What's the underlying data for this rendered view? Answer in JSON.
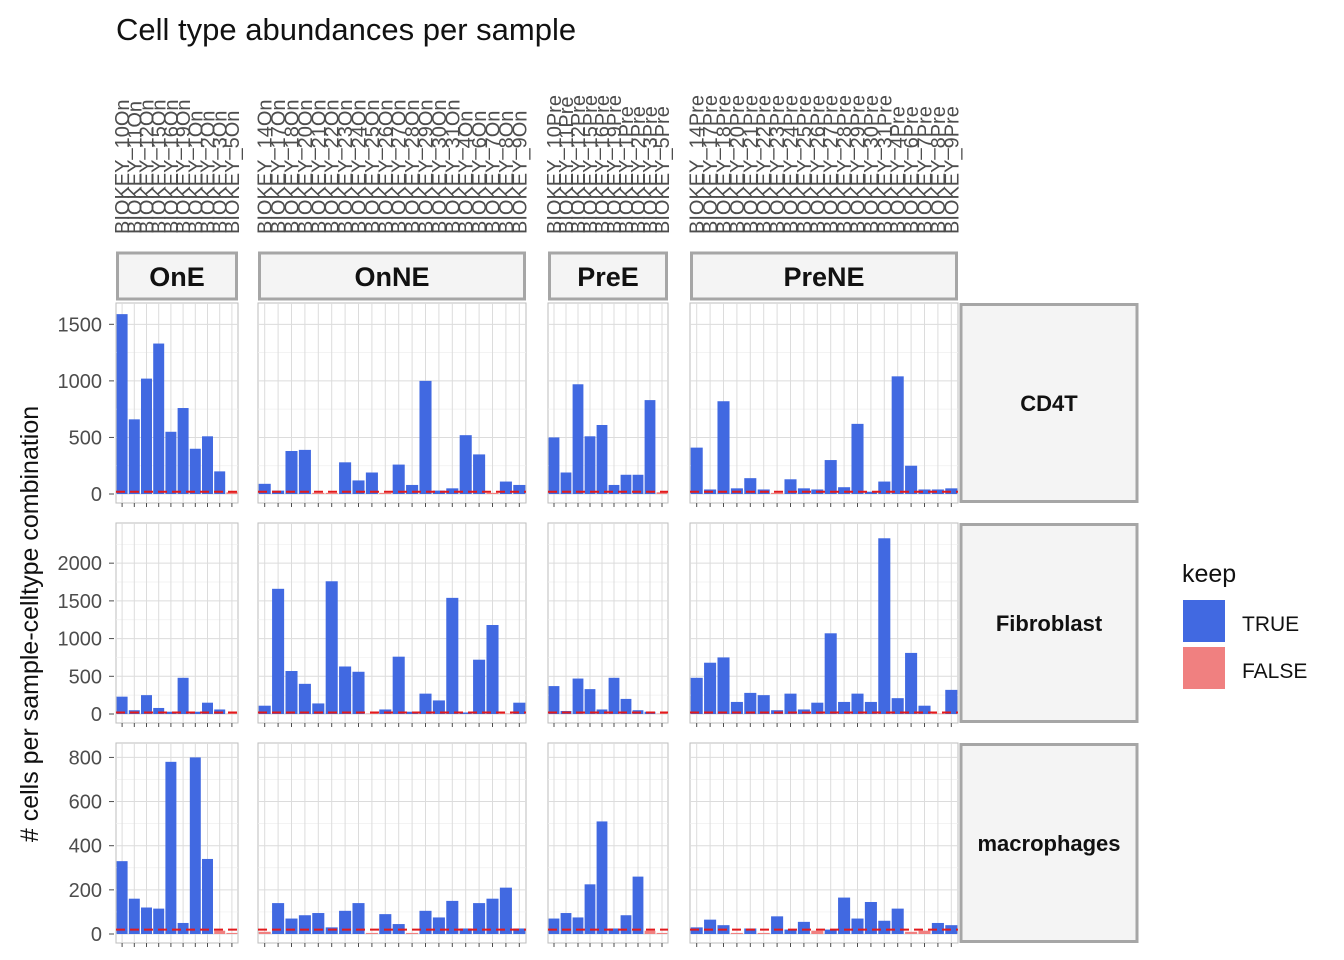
{
  "chart_data": {
    "type": "bar",
    "title": "Cell type abundances per sample",
    "ylabel": "# cells per sample-celltype combination",
    "xlabel": "",
    "legend": {
      "title": "keep",
      "placement": "right",
      "entries": [
        {
          "label": "TRUE",
          "color": "#4169E1"
        },
        {
          "label": "FALSE",
          "color": "#F08080"
        }
      ]
    },
    "threshold_color": "#E31A1C",
    "threshold_value": 20,
    "columns": [
      {
        "name": "OnE",
        "samples": [
          "BIOKEY_10On",
          "BIOKEY_11On",
          "BIOKEY_12On",
          "BIOKEY_15On",
          "BIOKEY_16On",
          "BIOKEY_19On",
          "BIOKEY_1On",
          "BIOKEY_2On",
          "BIOKEY_3On",
          "BIOKEY_5On"
        ]
      },
      {
        "name": "OnNE",
        "samples": [
          "BIOKEY_14On",
          "BIOKEY_17On",
          "BIOKEY_18On",
          "BIOKEY_20On",
          "BIOKEY_21On",
          "BIOKEY_22On",
          "BIOKEY_23On",
          "BIOKEY_24On",
          "BIOKEY_25On",
          "BIOKEY_26On",
          "BIOKEY_27On",
          "BIOKEY_28On",
          "BIOKEY_29On",
          "BIOKEY_30On",
          "BIOKEY_31On",
          "BIOKEY_4On",
          "BIOKEY_6On",
          "BIOKEY_7On",
          "BIOKEY_8On",
          "BIOKEY_9On"
        ]
      },
      {
        "name": "PreE",
        "samples": [
          "BIOKEY_10Pre",
          "BIOKEY_11Pre",
          "BIOKEY_12Pre",
          "BIOKEY_15Pre",
          "BIOKEY_16Pre",
          "BIOKEY_19Pre",
          "BIOKEY_1Pre",
          "BIOKEY_2Pre",
          "BIOKEY_3Pre",
          "BIOKEY_5Pre"
        ]
      },
      {
        "name": "PreNE",
        "samples": [
          "BIOKEY_14Pre",
          "BIOKEY_17Pre",
          "BIOKEY_18Pre",
          "BIOKEY_20Pre",
          "BIOKEY_21Pre",
          "BIOKEY_22Pre",
          "BIOKEY_23Pre",
          "BIOKEY_24Pre",
          "BIOKEY_25Pre",
          "BIOKEY_26Pre",
          "BIOKEY_27Pre",
          "BIOKEY_28Pre",
          "BIOKEY_29Pre",
          "BIOKEY_30Pre",
          "BIOKEY_31Pre",
          "BIOKEY_4Pre",
          "BIOKEY_6Pre",
          "BIOKEY_7Pre",
          "BIOKEY_8Pre",
          "BIOKEY_9Pre"
        ]
      }
    ],
    "rows": [
      {
        "name": "CD4T",
        "ylim": [
          0,
          1600
        ],
        "yticks": [
          0,
          500,
          1000,
          1500
        ],
        "values": [
          [
            1590,
            660,
            1020,
            1330,
            550,
            760,
            400,
            510,
            200,
            15
          ],
          [
            90,
            30,
            380,
            390,
            10,
            10,
            280,
            120,
            190,
            10,
            260,
            80,
            1000,
            30,
            50,
            520,
            350,
            10,
            110,
            80
          ],
          [
            500,
            190,
            970,
            510,
            610,
            80,
            170,
            170,
            830,
            15
          ],
          [
            410,
            40,
            820,
            50,
            140,
            40,
            10,
            130,
            50,
            40,
            300,
            60,
            620,
            20,
            110,
            1040,
            250,
            40,
            40,
            50
          ]
        ]
      },
      {
        "name": "Fibroblast",
        "ylim": [
          0,
          2400
        ],
        "yticks": [
          0,
          500,
          1000,
          1500,
          2000
        ],
        "values": [
          [
            230,
            50,
            250,
            80,
            30,
            480,
            30,
            150,
            60,
            5
          ],
          [
            110,
            1660,
            570,
            400,
            140,
            1760,
            630,
            560,
            5,
            60,
            760,
            30,
            270,
            180,
            1540,
            20,
            720,
            1180,
            5,
            150
          ],
          [
            370,
            40,
            470,
            330,
            60,
            480,
            200,
            50,
            30,
            5
          ],
          [
            480,
            680,
            750,
            160,
            280,
            250,
            50,
            270,
            60,
            150,
            1070,
            160,
            270,
            160,
            2330,
            210,
            810,
            110,
            5,
            320
          ]
        ]
      },
      {
        "name": "macrophages",
        "ylim": [
          0,
          820
        ],
        "yticks": [
          0,
          200,
          400,
          600,
          800
        ],
        "values": [
          [
            330,
            160,
            120,
            115,
            780,
            50,
            800,
            340,
            15,
            5
          ],
          [
            10,
            140,
            70,
            85,
            95,
            30,
            105,
            140,
            5,
            90,
            45,
            5,
            105,
            75,
            150,
            25,
            140,
            160,
            210,
            25
          ],
          [
            70,
            95,
            75,
            225,
            510,
            25,
            85,
            260,
            15,
            5
          ],
          [
            30,
            65,
            40,
            5,
            25,
            5,
            80,
            20,
            55,
            15,
            20,
            165,
            70,
            145,
            60,
            115,
            10,
            15,
            50,
            40
          ]
        ]
      }
    ]
  }
}
